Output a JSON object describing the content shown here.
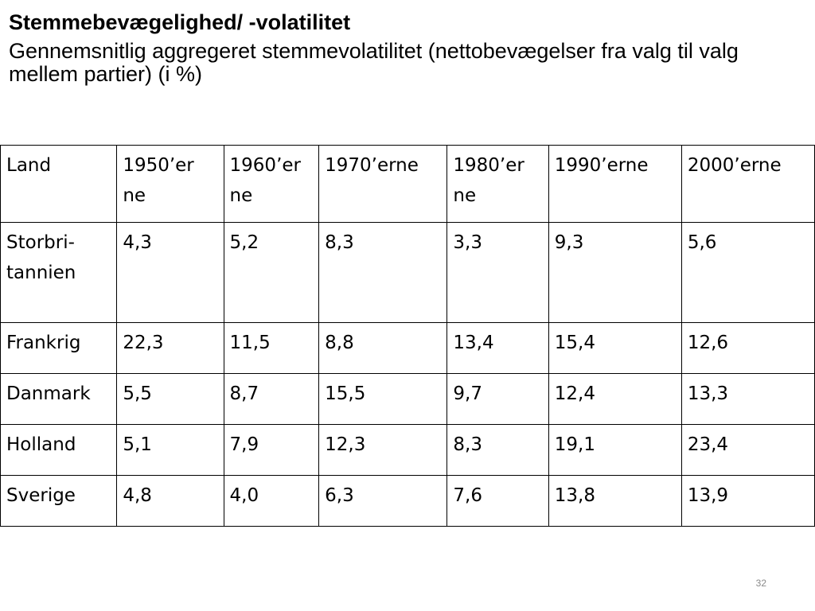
{
  "slide": {
    "title": "Stemmebevægelighed/ -volatilitet",
    "subtitle": "Gennemsnitlig aggregeret stemmevolatilitet (nettobevægelser fra valg til valg mellem partier) (i %)",
    "page_number": "32"
  },
  "table": {
    "headers": [
      "Land",
      "1950’erne",
      "1960’erne",
      "1970’erne",
      "1980’erne",
      "1990’erne",
      "2000’erne"
    ],
    "header_display": [
      [
        "Land"
      ],
      [
        "1950’er",
        "ne"
      ],
      [
        "1960’er",
        "ne"
      ],
      [
        "1970’erne"
      ],
      [
        "1980’er",
        "ne"
      ],
      [
        "1990’erne"
      ],
      [
        "2000’erne"
      ]
    ],
    "rows": [
      {
        "land_display": [
          "Storbri-",
          "tannien"
        ],
        "values": [
          "4,3",
          "5,2",
          "8,3",
          "3,3",
          "9,3",
          "5,6"
        ]
      },
      {
        "land_display": [
          "Frankrig"
        ],
        "values": [
          "22,3",
          "11,5",
          "8,8",
          "13,4",
          "15,4",
          "12,6"
        ]
      },
      {
        "land_display": [
          "Danmark"
        ],
        "values": [
          "5,5",
          "8,7",
          "15,5",
          "9,7",
          "12,4",
          "13,3"
        ]
      },
      {
        "land_display": [
          "Holland"
        ],
        "values": [
          "5,1",
          "7,9",
          "12,3",
          "8,3",
          "19,1",
          "23,4"
        ]
      },
      {
        "land_display": [
          "Sverige"
        ],
        "values": [
          "4,8",
          "4,0",
          "6,3",
          "7,6",
          "13,8",
          "13,9"
        ]
      }
    ]
  }
}
